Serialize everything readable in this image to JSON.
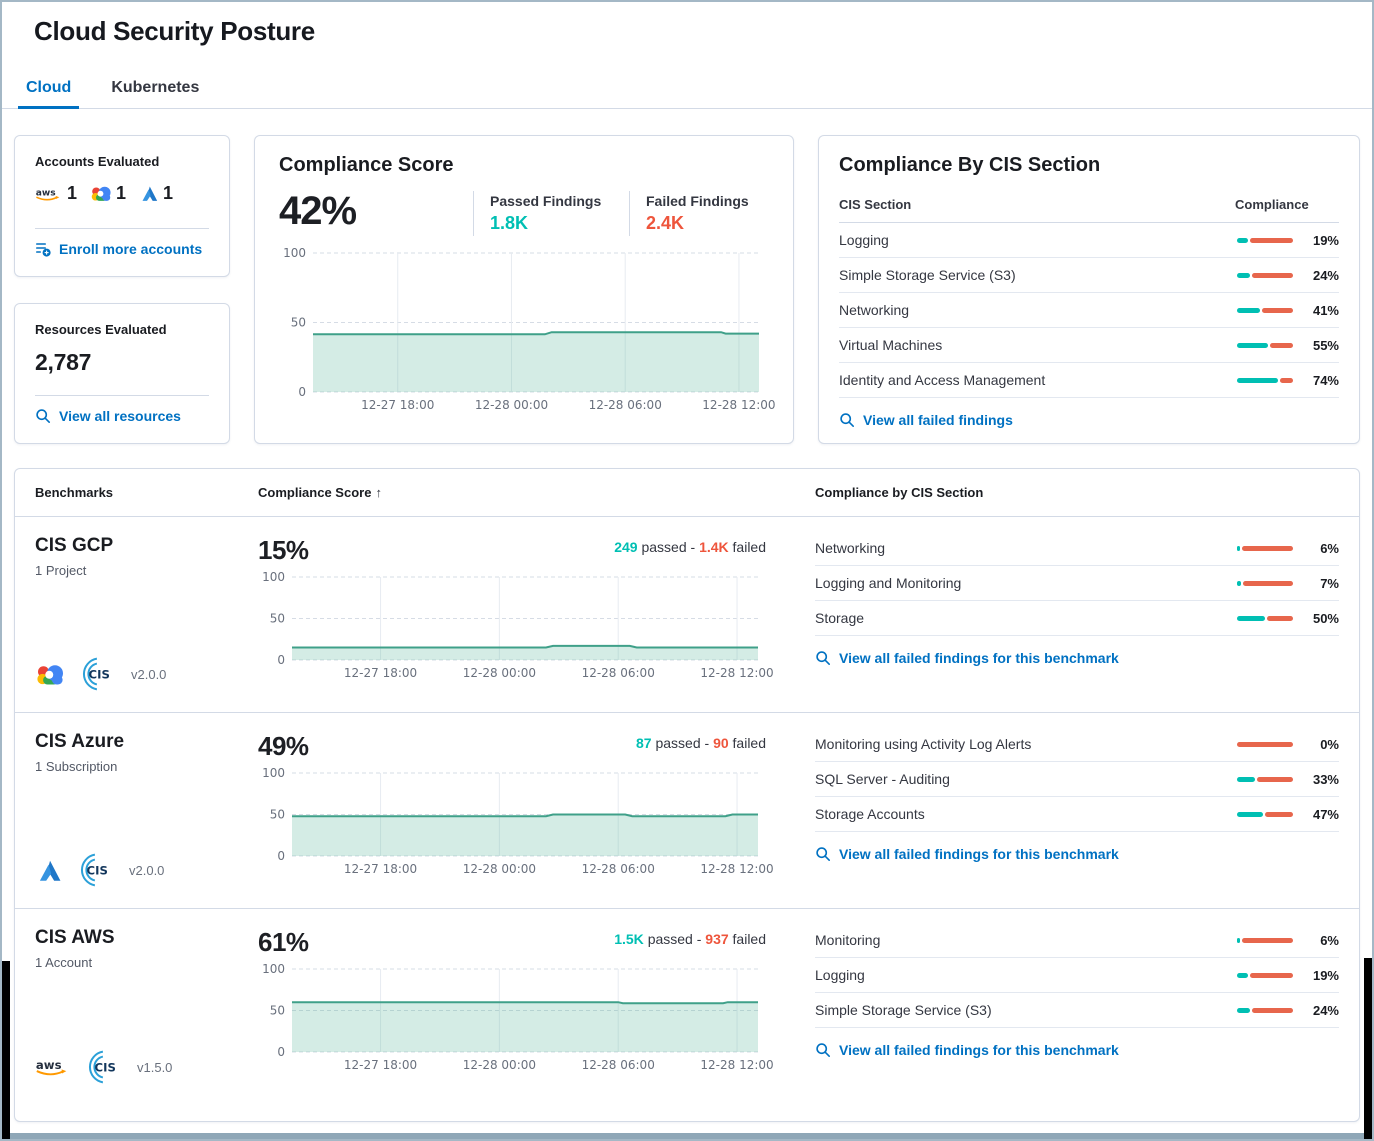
{
  "page": {
    "title": "Cloud Security Posture"
  },
  "tabs": [
    {
      "label": "Cloud",
      "active": true
    },
    {
      "label": "Kubernetes",
      "active": false
    }
  ],
  "accounts_card": {
    "title": "Accounts Evaluated",
    "providers": [
      {
        "name": "aws",
        "count": "1"
      },
      {
        "name": "gcp",
        "count": "1"
      },
      {
        "name": "azure",
        "count": "1"
      }
    ],
    "link": "Enroll more accounts"
  },
  "resources_card": {
    "title": "Resources Evaluated",
    "value": "2,787",
    "link": "View all resources"
  },
  "score_card": {
    "title": "Compliance Score",
    "score": "42%",
    "passed_label": "Passed Findings",
    "passed_value": "1.8K",
    "failed_label": "Failed Findings",
    "failed_value": "2.4K"
  },
  "cis_card": {
    "title": "Compliance By CIS Section",
    "col_section": "CIS Section",
    "col_compliance": "Compliance",
    "rows": [
      {
        "section": "Logging",
        "pct": 19,
        "label": "19%"
      },
      {
        "section": "Simple Storage Service (S3)",
        "pct": 24,
        "label": "24%"
      },
      {
        "section": "Networking",
        "pct": 41,
        "label": "41%"
      },
      {
        "section": "Virtual Machines",
        "pct": 55,
        "label": "55%"
      },
      {
        "section": "Identity and Access Management",
        "pct": 74,
        "label": "74%"
      }
    ],
    "link": "View all failed findings"
  },
  "strings": {
    "passed_word": "passed -",
    "failed_word": "failed"
  },
  "benchmarks_table": {
    "headers": {
      "benchmarks": "Benchmarks",
      "score": "Compliance Score",
      "sort_arrow": "↑",
      "sections": "Compliance by CIS Section"
    },
    "rows": [
      {
        "name": "CIS GCP",
        "subtitle": "1 Project",
        "provider": "gcp",
        "version": "v2.0.0",
        "score": "15%",
        "passed": "249",
        "failed": "1.4K",
        "sections": [
          {
            "section": "Networking",
            "pct": 6,
            "label": "6%"
          },
          {
            "section": "Logging and Monitoring",
            "pct": 7,
            "label": "7%"
          },
          {
            "section": "Storage",
            "pct": 50,
            "label": "50%"
          }
        ],
        "link": "View all failed findings for this benchmark"
      },
      {
        "name": "CIS Azure",
        "subtitle": "1 Subscription",
        "provider": "azure",
        "version": "v2.0.0",
        "score": "49%",
        "passed": "87",
        "failed": "90",
        "sections": [
          {
            "section": "Monitoring using Activity Log Alerts",
            "pct": 0,
            "label": "0%"
          },
          {
            "section": "SQL Server - Auditing",
            "pct": 33,
            "label": "33%"
          },
          {
            "section": "Storage Accounts",
            "pct": 47,
            "label": "47%"
          }
        ],
        "link": "View all failed findings for this benchmark"
      },
      {
        "name": "CIS AWS",
        "subtitle": "1 Account",
        "provider": "aws",
        "version": "v1.5.0",
        "score": "61%",
        "passed": "1.5K",
        "failed": "937",
        "sections": [
          {
            "section": "Monitoring",
            "pct": 6,
            "label": "6%"
          },
          {
            "section": "Logging",
            "pct": 19,
            "label": "19%"
          },
          {
            "section": "Simple Storage Service (S3)",
            "pct": 24,
            "label": "24%"
          }
        ],
        "link": "View all failed findings for this benchmark"
      }
    ]
  },
  "chart_data": [
    {
      "id": "overall-compliance-trend",
      "type": "area",
      "ylim": [
        0,
        100
      ],
      "y_ticks": [
        0,
        50,
        100
      ],
      "x_ticks": [
        {
          "label": "12-27 18:00",
          "t": 0.19
        },
        {
          "label": "12-28 00:00",
          "t": 0.445
        },
        {
          "label": "12-28 06:00",
          "t": 0.7
        },
        {
          "label": "12-28 12:00",
          "t": 0.955
        }
      ],
      "points": [
        [
          0,
          41.5
        ],
        [
          0.52,
          41.5
        ],
        [
          0.535,
          43
        ],
        [
          0.915,
          43
        ],
        [
          0.925,
          42
        ],
        [
          1,
          42
        ]
      ]
    },
    {
      "id": "cis-gcp-trend",
      "type": "area",
      "ylim": [
        0,
        100
      ],
      "y_ticks": [
        0,
        50,
        100
      ],
      "x_ticks": [
        {
          "label": "12-27 18:00",
          "t": 0.19
        },
        {
          "label": "12-28 00:00",
          "t": 0.445
        },
        {
          "label": "12-28 06:00",
          "t": 0.7
        },
        {
          "label": "12-28 12:00",
          "t": 0.955
        }
      ],
      "points": [
        [
          0,
          15
        ],
        [
          0.545,
          15
        ],
        [
          0.56,
          17
        ],
        [
          0.725,
          17
        ],
        [
          0.74,
          15
        ],
        [
          1,
          15
        ]
      ]
    },
    {
      "id": "cis-azure-trend",
      "type": "area",
      "ylim": [
        0,
        100
      ],
      "y_ticks": [
        0,
        50,
        100
      ],
      "x_ticks": [
        {
          "label": "12-27 18:00",
          "t": 0.19
        },
        {
          "label": "12-28 00:00",
          "t": 0.445
        },
        {
          "label": "12-28 06:00",
          "t": 0.7
        },
        {
          "label": "12-28 12:00",
          "t": 0.955
        }
      ],
      "points": [
        [
          0,
          48
        ],
        [
          0.545,
          48
        ],
        [
          0.56,
          50
        ],
        [
          0.715,
          50
        ],
        [
          0.73,
          48
        ],
        [
          0.93,
          48
        ],
        [
          0.945,
          50
        ],
        [
          1,
          50
        ]
      ]
    },
    {
      "id": "cis-aws-trend",
      "type": "area",
      "ylim": [
        0,
        100
      ],
      "y_ticks": [
        0,
        50,
        100
      ],
      "x_ticks": [
        {
          "label": "12-27 18:00",
          "t": 0.19
        },
        {
          "label": "12-28 00:00",
          "t": 0.445
        },
        {
          "label": "12-28 06:00",
          "t": 0.7
        },
        {
          "label": "12-28 12:00",
          "t": 0.955
        }
      ],
      "points": [
        [
          0,
          60
        ],
        [
          0.7,
          60
        ],
        [
          0.71,
          58.8
        ],
        [
          0.925,
          58.8
        ],
        [
          0.935,
          60
        ],
        [
          1,
          60
        ]
      ]
    }
  ],
  "colors": {
    "accent": "#0071c2",
    "teal": "#00bfb3",
    "red": "#ee553c",
    "teal_bar": "#00bfb3",
    "red_bar": "#e7664c",
    "chart_line": "#3fa089",
    "chart_fill": "#54b399"
  }
}
